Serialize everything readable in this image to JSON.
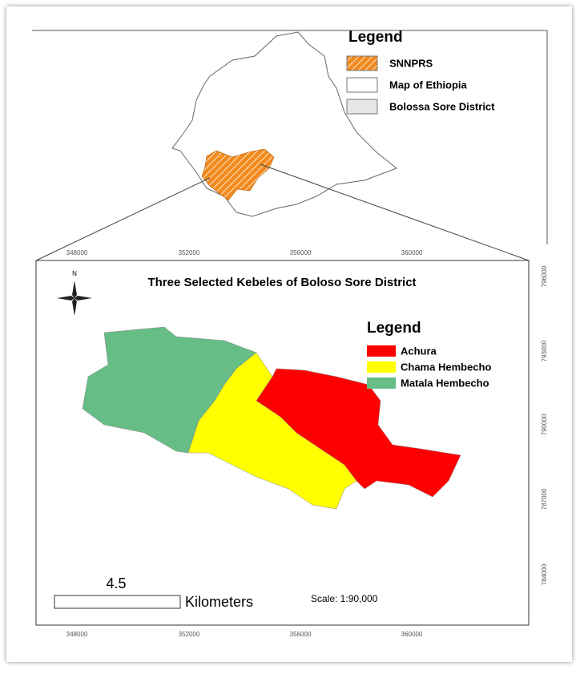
{
  "inset": {
    "legend": {
      "title": "Legend",
      "items": [
        {
          "label": "SNNPRS",
          "color": "#f28a1e"
        },
        {
          "label": "Map of Ethiopia",
          "color": "#ffffff"
        },
        {
          "label": "Bolossa Sore District",
          "color": "#e6e6e6"
        }
      ]
    }
  },
  "main": {
    "title": "Three Selected Kebeles of Boloso Sore District",
    "north": "N",
    "legend": {
      "title": "Legend",
      "items": [
        {
          "label": "Achura",
          "color": "#ff0000"
        },
        {
          "label": "Chama Hembecho",
          "color": "#ffff00"
        },
        {
          "label": "Matala Hembecho",
          "color": "#66bd86"
        }
      ]
    },
    "x_labels": [
      348000,
      352000,
      356000,
      360000
    ],
    "y_labels": [
      796000,
      793000,
      790000,
      787000,
      784000
    ],
    "scale_bar": {
      "distance": "4.5",
      "unit": "Kilometers"
    },
    "scale": "Scale: 1:90,000"
  }
}
